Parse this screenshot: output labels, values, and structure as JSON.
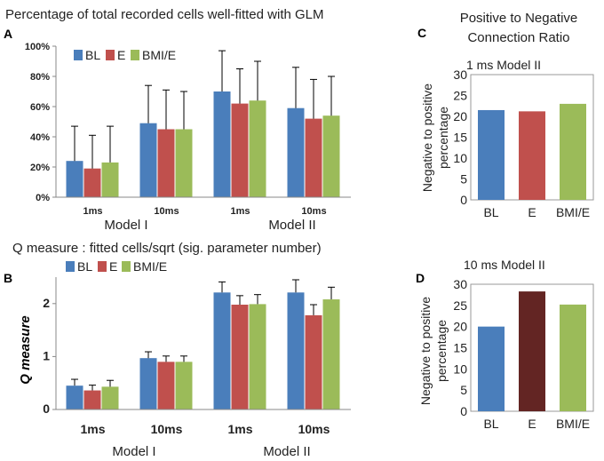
{
  "colors": {
    "BL": "#4a7ebb",
    "E": "#c0504d",
    "BMI/E": "#9bbb59",
    "E_dark": "#632523"
  },
  "chart_data": [
    {
      "id": "A",
      "panel_label": "A",
      "type": "bar",
      "title": "Percentage of total recorded cells well-fitted with GLM",
      "xlabel": "",
      "ylabel": "",
      "legend": [
        "BL",
        "E",
        "BMI/E"
      ],
      "categories": [
        "1ms",
        "10ms",
        "1ms",
        "10ms"
      ],
      "groups": [
        "Model I",
        "Model II"
      ],
      "yticks": [
        "0%",
        "20%",
        "40%",
        "60%",
        "80%",
        "100%"
      ],
      "ylim": [
        0,
        100
      ],
      "series": [
        {
          "name": "BL",
          "values": [
            24,
            49,
            70,
            59
          ],
          "errors": [
            23,
            25,
            27,
            27
          ]
        },
        {
          "name": "E",
          "values": [
            19,
            45,
            62,
            52
          ],
          "errors": [
            22,
            26,
            23,
            26
          ]
        },
        {
          "name": "BMI/E",
          "values": [
            23,
            45,
            64,
            54
          ],
          "errors": [
            24,
            25,
            26,
            26
          ]
        }
      ]
    },
    {
      "id": "B",
      "panel_label": "B",
      "type": "bar",
      "title": "Q measure : fitted cells/sqrt (sig. parameter number)",
      "xlabel": "",
      "ylabel": "Q measure",
      "legend": [
        "BL",
        "E",
        "BMI/E"
      ],
      "categories": [
        "1ms",
        "10ms",
        "1ms",
        "10ms"
      ],
      "groups": [
        "Model I",
        "Model II"
      ],
      "yticks": [
        "0",
        "1",
        "2"
      ],
      "ylim": [
        0,
        2.5
      ],
      "series": [
        {
          "name": "BL",
          "values": [
            0.45,
            0.97,
            2.21,
            2.21
          ],
          "errors": [
            0.12,
            0.12,
            0.2,
            0.24
          ]
        },
        {
          "name": "E",
          "values": [
            0.36,
            0.9,
            1.98,
            1.78
          ],
          "errors": [
            0.1,
            0.11,
            0.17,
            0.2
          ]
        },
        {
          "name": "BMI/E",
          "values": [
            0.43,
            0.9,
            1.99,
            2.08
          ],
          "errors": [
            0.12,
            0.11,
            0.18,
            0.23
          ]
        }
      ]
    },
    {
      "id": "C",
      "panel_label": "C",
      "type": "bar",
      "title": "Positive to Negative Connection Ratio",
      "subtitle": "1 ms Model II",
      "xlabel": "",
      "ylabel": "Negative to positive percentage",
      "categories": [
        "BL",
        "E",
        "BMI/E"
      ],
      "values": [
        21.5,
        21.2,
        23
      ],
      "ylim": [
        0,
        30
      ],
      "yticks": [
        "0",
        "5",
        "10",
        "15",
        "20",
        "25",
        "30"
      ]
    },
    {
      "id": "D",
      "panel_label": "D",
      "type": "bar",
      "title": "",
      "subtitle": "10 ms Model II",
      "xlabel": "",
      "ylabel": "Negative to positive percentage",
      "categories": [
        "BL",
        "E",
        "BMI/E"
      ],
      "values": [
        20,
        28.3,
        25.2
      ],
      "ylim": [
        0,
        30
      ],
      "yticks": [
        "0",
        "5",
        "10",
        "15",
        "20",
        "25",
        "30"
      ]
    }
  ]
}
